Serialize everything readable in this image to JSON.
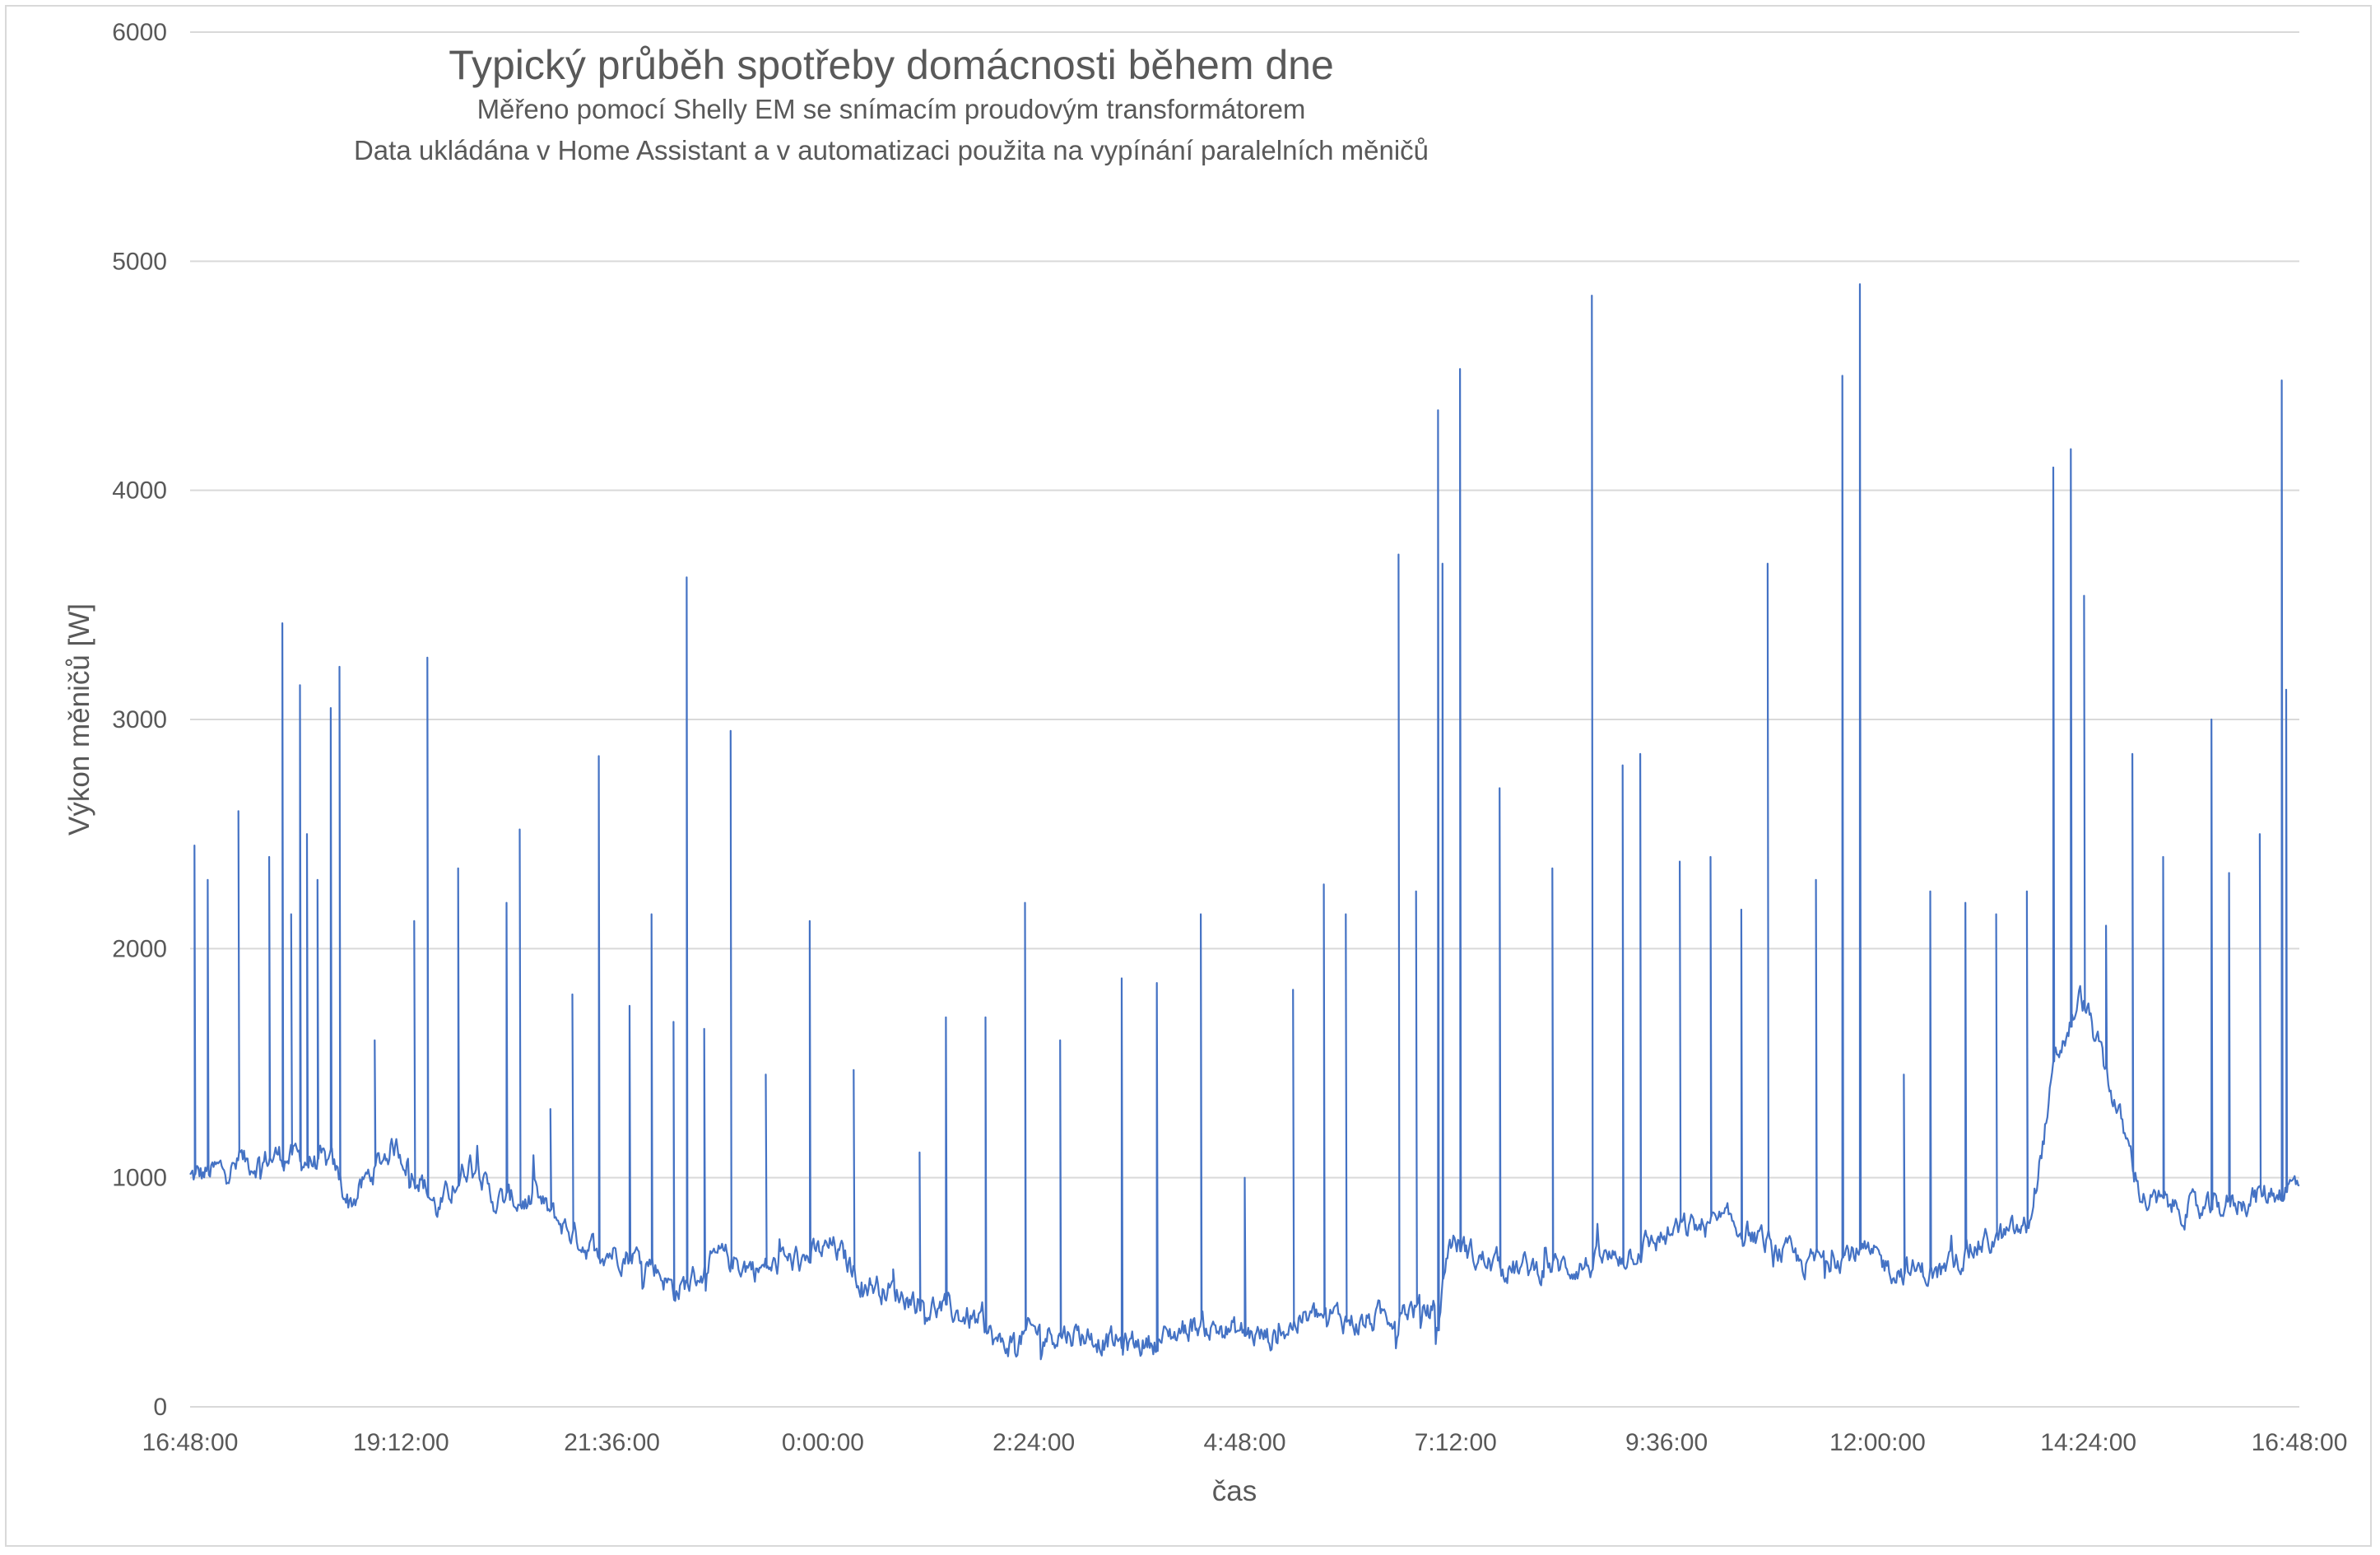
{
  "chart_data": {
    "type": "line",
    "title": "Typický průběh spotřeby domácnosti během dne",
    "subtitle_lines": [
      "Měřeno pomocí Shelly EM se snímacím proudovým transformátorem",
      "Data ukládána v Home Assistant a v automatizaci použita na vypínání paralelních měničů"
    ],
    "xlabel": "čas",
    "ylabel": "Výkon měničů [W]",
    "ylim": [
      0,
      6000
    ],
    "y_ticks": [
      "0",
      "1000",
      "2000",
      "3000",
      "4000",
      "5000",
      "6000"
    ],
    "x_ticks": [
      "16:48:00",
      "19:12:00",
      "21:36:00",
      "0:00:00",
      "2:24:00",
      "4:48:00",
      "7:12:00",
      "9:36:00",
      "12:00:00",
      "14:24:00",
      "16:48:00"
    ],
    "x_range_hours": [
      0,
      24
    ],
    "grid": "horizontal",
    "series_color": "#4472c4",
    "series": [
      {
        "name": "",
        "baseline": [
          [
            0,
            1000
          ],
          [
            0.5,
            1050
          ],
          [
            1.0,
            1100
          ],
          [
            1.6,
            1050
          ],
          [
            1.8,
            880
          ],
          [
            2.0,
            1000
          ],
          [
            2.3,
            1150
          ],
          [
            2.6,
            1000
          ],
          [
            2.8,
            850
          ],
          [
            3.2,
            1100
          ],
          [
            3.4,
            900
          ],
          [
            3.9,
            900
          ],
          [
            4.2,
            800
          ],
          [
            4.5,
            700
          ],
          [
            5.2,
            650
          ],
          [
            5.5,
            500
          ],
          [
            6.0,
            650
          ],
          [
            6.5,
            600
          ],
          [
            7.0,
            650
          ],
          [
            7.3,
            700
          ],
          [
            7.6,
            560
          ],
          [
            8.0,
            500
          ],
          [
            8.5,
            430
          ],
          [
            8.9,
            380
          ],
          [
            9.2,
            260
          ],
          [
            9.6,
            330
          ],
          [
            10.1,
            320
          ],
          [
            10.6,
            270
          ],
          [
            11.0,
            290
          ],
          [
            11.4,
            360
          ],
          [
            11.8,
            330
          ],
          [
            12.3,
            300
          ],
          [
            12.6,
            380
          ],
          [
            13.0,
            400
          ],
          [
            13.3,
            360
          ],
          [
            13.8,
            430
          ],
          [
            14.2,
            420
          ],
          [
            14.3,
            750
          ],
          [
            14.6,
            650
          ],
          [
            15.0,
            600
          ],
          [
            16.0,
            620
          ],
          [
            16.5,
            700
          ],
          [
            17.0,
            780
          ],
          [
            17.5,
            800
          ],
          [
            18.0,
            700
          ],
          [
            18.3,
            620
          ],
          [
            18.9,
            680
          ],
          [
            19.4,
            600
          ],
          [
            19.9,
            580
          ],
          [
            20.3,
            700
          ],
          [
            20.9,
            780
          ],
          [
            21.2,
            1500
          ],
          [
            21.5,
            1800
          ],
          [
            21.9,
            1300
          ],
          [
            22.2,
            900
          ],
          [
            22.9,
            850
          ],
          [
            23.3,
            900
          ],
          [
            23.8,
            950
          ],
          [
            24.0,
            980
          ]
        ],
        "spikes": [
          [
            0.05,
            2450
          ],
          [
            0.2,
            2300
          ],
          [
            0.55,
            2600
          ],
          [
            0.9,
            2400
          ],
          [
            1.05,
            3420
          ],
          [
            1.15,
            2150
          ],
          [
            1.25,
            3150
          ],
          [
            1.33,
            2500
          ],
          [
            1.45,
            2300
          ],
          [
            1.6,
            3050
          ],
          [
            1.7,
            3230
          ],
          [
            2.1,
            1600
          ],
          [
            2.55,
            2120
          ],
          [
            2.7,
            3270
          ],
          [
            3.05,
            2350
          ],
          [
            3.6,
            2200
          ],
          [
            3.75,
            2520
          ],
          [
            4.1,
            1300
          ],
          [
            4.35,
            1800
          ],
          [
            4.65,
            2840
          ],
          [
            5.0,
            1750
          ],
          [
            5.25,
            2150
          ],
          [
            5.5,
            1680
          ],
          [
            5.65,
            3620
          ],
          [
            5.85,
            1650
          ],
          [
            6.15,
            2950
          ],
          [
            6.55,
            1450
          ],
          [
            7.05,
            2120
          ],
          [
            7.55,
            1470
          ],
          [
            8.0,
            600
          ],
          [
            8.3,
            1110
          ],
          [
            8.6,
            1700
          ],
          [
            9.05,
            1700
          ],
          [
            9.5,
            2200
          ],
          [
            9.9,
            1600
          ],
          [
            10.6,
            1870
          ],
          [
            11.0,
            1850
          ],
          [
            11.5,
            2150
          ],
          [
            12.0,
            1000
          ],
          [
            12.55,
            1820
          ],
          [
            12.9,
            2280
          ],
          [
            13.15,
            2150
          ],
          [
            13.75,
            3720
          ],
          [
            13.95,
            2250
          ],
          [
            14.2,
            4350
          ],
          [
            14.25,
            3680
          ],
          [
            14.45,
            4530
          ],
          [
            14.9,
            2700
          ],
          [
            15.5,
            2350
          ],
          [
            15.95,
            4850
          ],
          [
            16.3,
            2800
          ],
          [
            16.5,
            2850
          ],
          [
            16.95,
            2380
          ],
          [
            17.3,
            2400
          ],
          [
            17.65,
            2170
          ],
          [
            17.95,
            3680
          ],
          [
            18.5,
            2300
          ],
          [
            18.8,
            4500
          ],
          [
            19.0,
            4900
          ],
          [
            19.5,
            1450
          ],
          [
            19.8,
            2250
          ],
          [
            20.2,
            2200
          ],
          [
            20.55,
            2150
          ],
          [
            20.9,
            2250
          ],
          [
            21.2,
            4100
          ],
          [
            21.4,
            4180
          ],
          [
            21.55,
            3540
          ],
          [
            21.8,
            2100
          ],
          [
            22.1,
            2850
          ],
          [
            22.45,
            2400
          ],
          [
            23.0,
            3000
          ],
          [
            23.2,
            2330
          ],
          [
            23.55,
            2500
          ],
          [
            23.8,
            4480
          ],
          [
            23.85,
            3130
          ]
        ]
      }
    ]
  }
}
